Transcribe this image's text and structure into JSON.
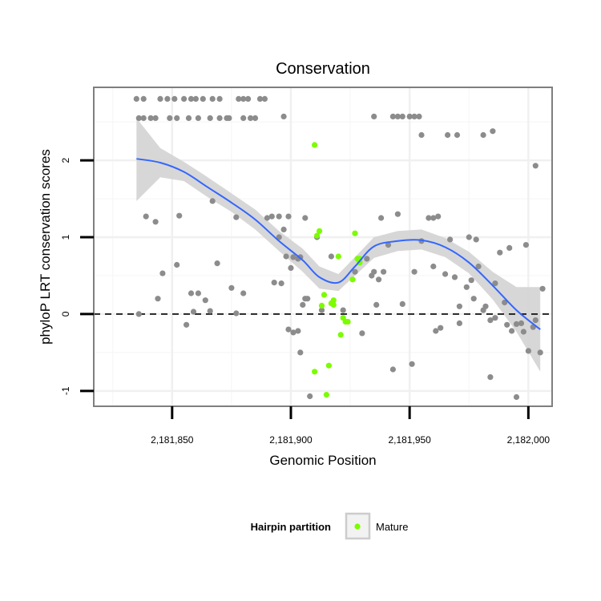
{
  "chart_data": {
    "type": "scatter",
    "title": "Conservation",
    "xlabel": "Genomic Position",
    "ylabel": "phyloP LRT conservation scores",
    "xlim": [
      2181817,
      2182010
    ],
    "ylim": [
      -1.2,
      2.95
    ],
    "x_ticks": [
      2181850,
      2181900,
      2181950,
      2182000
    ],
    "x_tick_labels": [
      "2,181,850",
      "2,181,900",
      "2,181,950",
      "2,182,000"
    ],
    "y_ticks": [
      -1,
      0,
      1,
      2
    ],
    "y_tick_labels": [
      "-1",
      "0",
      "1",
      "2"
    ],
    "grid": true,
    "reference_line": 0,
    "legend": {
      "title": "Hairpin partition",
      "position": "bottom",
      "entries": [
        {
          "label": "Mature",
          "color": "#7cfc00"
        }
      ]
    },
    "colors": {
      "other": "#8c8c8c",
      "mature": "#7cfc00",
      "smooth": "#3366ff",
      "ribbon": "#d3d3d3"
    },
    "series": [
      {
        "group": "other",
        "points": [
          [
            2181835,
            2.8
          ],
          [
            2181838,
            2.8
          ],
          [
            2181845,
            2.8
          ],
          [
            2181848,
            2.8
          ],
          [
            2181851,
            2.8
          ],
          [
            2181855,
            2.8
          ],
          [
            2181858,
            2.8
          ],
          [
            2181860,
            2.8
          ],
          [
            2181863,
            2.8
          ],
          [
            2181867,
            2.8
          ],
          [
            2181870,
            2.8
          ],
          [
            2181878,
            2.8
          ],
          [
            2181880,
            2.8
          ],
          [
            2181882,
            2.8
          ],
          [
            2181887,
            2.8
          ],
          [
            2181889,
            2.8
          ],
          [
            2181836,
            2.55
          ],
          [
            2181838,
            2.55
          ],
          [
            2181841,
            2.55
          ],
          [
            2181843,
            2.55
          ],
          [
            2181849,
            2.55
          ],
          [
            2181852,
            2.55
          ],
          [
            2181857,
            2.55
          ],
          [
            2181861,
            2.55
          ],
          [
            2181866,
            2.55
          ],
          [
            2181870,
            2.55
          ],
          [
            2181873,
            2.55
          ],
          [
            2181874,
            2.55
          ],
          [
            2181880,
            2.55
          ],
          [
            2181883,
            2.55
          ],
          [
            2181885,
            2.55
          ],
          [
            2181897,
            2.57
          ],
          [
            2181935,
            2.57
          ],
          [
            2181943,
            2.57
          ],
          [
            2181945,
            2.57
          ],
          [
            2181947,
            2.57
          ],
          [
            2181950,
            2.57
          ],
          [
            2181952,
            2.57
          ],
          [
            2181954,
            2.57
          ],
          [
            2181955,
            2.33
          ],
          [
            2181966,
            2.33
          ],
          [
            2181970,
            2.33
          ],
          [
            2181981,
            2.33
          ],
          [
            2181985,
            2.38
          ],
          [
            2181839,
            1.27
          ],
          [
            2181843,
            1.2
          ],
          [
            2181853,
            1.28
          ],
          [
            2181867,
            1.47
          ],
          [
            2181877,
            1.26
          ],
          [
            2181890,
            1.25
          ],
          [
            2181892,
            1.27
          ],
          [
            2181895,
            1.27
          ],
          [
            2181899,
            1.27
          ],
          [
            2181906,
            1.25
          ],
          [
            2181911,
            1.0
          ],
          [
            2181897,
            1.1
          ],
          [
            2181895,
            1.0
          ],
          [
            2181898,
            0.75
          ],
          [
            2181901,
            0.74
          ],
          [
            2181904,
            0.74
          ],
          [
            2181917,
            0.75
          ],
          [
            2181932,
            0.72
          ],
          [
            2181935,
            0.55
          ],
          [
            2181939,
            0.55
          ],
          [
            2181941,
            0.9
          ],
          [
            2181945,
            1.3
          ],
          [
            2181938,
            1.25
          ],
          [
            2181958,
            1.25
          ],
          [
            2181960,
            1.25
          ],
          [
            2181962,
            1.27
          ],
          [
            2181967,
            0.97
          ],
          [
            2181975,
            1.0
          ],
          [
            2181978,
            0.97
          ],
          [
            2181955,
            0.95
          ],
          [
            2181960,
            0.62
          ],
          [
            2181965,
            0.52
          ],
          [
            2181969,
            0.48
          ],
          [
            2181976,
            0.44
          ],
          [
            2181974,
            0.35
          ],
          [
            2181952,
            0.55
          ],
          [
            2181977,
            0.2
          ],
          [
            2181979,
            0.62
          ],
          [
            2181981,
            0.05
          ],
          [
            2181992,
            0.86
          ],
          [
            2181999,
            0.9
          ],
          [
            2182003,
            1.93
          ],
          [
            2181846,
            0.53
          ],
          [
            2181852,
            0.64
          ],
          [
            2181869,
            0.66
          ],
          [
            2181875,
            0.34
          ],
          [
            2181858,
            0.27
          ],
          [
            2181861,
            0.27
          ],
          [
            2181844,
            0.2
          ],
          [
            2181836,
            0.0
          ],
          [
            2181856,
            -0.14
          ],
          [
            2181859,
            0.03
          ],
          [
            2181864,
            0.18
          ],
          [
            2181866,
            0.04
          ],
          [
            2181877,
            0.01
          ],
          [
            2181880,
            0.27
          ],
          [
            2181893,
            0.41
          ],
          [
            2181896,
            0.4
          ],
          [
            2181900,
            0.6
          ],
          [
            2181905,
            0.12
          ],
          [
            2181906,
            0.2
          ],
          [
            2181907,
            0.2
          ],
          [
            2181913,
            0.05
          ],
          [
            2181922,
            0.05
          ],
          [
            2181927,
            0.55
          ],
          [
            2181934,
            0.5
          ],
          [
            2181936,
            0.12
          ],
          [
            2181937,
            0.45
          ],
          [
            2181930,
            -0.25
          ],
          [
            2181943,
            -0.72
          ],
          [
            2181947,
            0.13
          ],
          [
            2181951,
            -0.65
          ],
          [
            2181961,
            -0.22
          ],
          [
            2181963,
            -0.18
          ],
          [
            2181971,
            -0.12
          ],
          [
            2181971,
            0.1
          ],
          [
            2181984,
            -0.08
          ],
          [
            2181986,
            -0.05
          ],
          [
            2181990,
            0.15
          ],
          [
            2181991,
            -0.14
          ],
          [
            2181993,
            -0.22
          ],
          [
            2181995,
            -0.13
          ],
          [
            2181997,
            -0.12
          ],
          [
            2181998,
            -0.23
          ],
          [
            2182000,
            -0.48
          ],
          [
            2182002,
            -0.17
          ],
          [
            2182003,
            -0.08
          ],
          [
            2182005,
            -0.5
          ],
          [
            2182006,
            0.33
          ],
          [
            2181988,
            0.8
          ],
          [
            2181984,
            -0.82
          ],
          [
            2181995,
            -1.08
          ],
          [
            2181899,
            -0.2
          ],
          [
            2181901,
            -0.24
          ],
          [
            2181903,
            -0.22
          ],
          [
            2181904,
            -0.5
          ],
          [
            2181908,
            -1.07
          ],
          [
            2181986,
            0.4
          ],
          [
            2181982,
            0.1
          ],
          [
            2181903,
            0.72
          ]
        ]
      },
      {
        "group": "Mature",
        "points": [
          [
            2181910,
            2.2
          ],
          [
            2181911,
            1.02
          ],
          [
            2181912,
            1.08
          ],
          [
            2181920,
            0.75
          ],
          [
            2181927,
            1.05
          ],
          [
            2181928,
            0.72
          ],
          [
            2181929,
            0.67
          ],
          [
            2181929,
            0.72
          ],
          [
            2181926,
            0.45
          ],
          [
            2181913,
            0.11
          ],
          [
            2181914,
            0.25
          ],
          [
            2181917,
            0.14
          ],
          [
            2181918,
            0.18
          ],
          [
            2181918,
            0.12
          ],
          [
            2181921,
            -0.27
          ],
          [
            2181922,
            -0.05
          ],
          [
            2181924,
            -0.1
          ],
          [
            2181923,
            -0.1
          ],
          [
            2181910,
            -0.75
          ],
          [
            2181916,
            -0.67
          ],
          [
            2181915,
            -1.05
          ]
        ]
      }
    ],
    "smooth": {
      "x": [
        2181835,
        2181845,
        2181855,
        2181865,
        2181875,
        2181885,
        2181895,
        2181905,
        2181912,
        2181920,
        2181927,
        2181935,
        2181945,
        2181955,
        2181965,
        2181975,
        2181985,
        2181995,
        2182005
      ],
      "y": [
        2.02,
        1.97,
        1.85,
        1.65,
        1.45,
        1.23,
        0.95,
        0.7,
        0.48,
        0.41,
        0.62,
        0.88,
        0.95,
        0.96,
        0.87,
        0.67,
        0.37,
        0.05,
        -0.2
      ],
      "lower": [
        1.47,
        1.78,
        1.73,
        1.52,
        1.33,
        1.1,
        0.82,
        0.55,
        0.33,
        0.3,
        0.5,
        0.73,
        0.82,
        0.84,
        0.74,
        0.53,
        0.19,
        -0.23,
        -0.75
      ],
      "upper": [
        2.55,
        2.16,
        1.98,
        1.78,
        1.57,
        1.36,
        1.08,
        0.85,
        0.62,
        0.52,
        0.74,
        1.0,
        1.08,
        1.1,
        0.99,
        0.81,
        0.55,
        0.35,
        0.35
      ]
    }
  }
}
